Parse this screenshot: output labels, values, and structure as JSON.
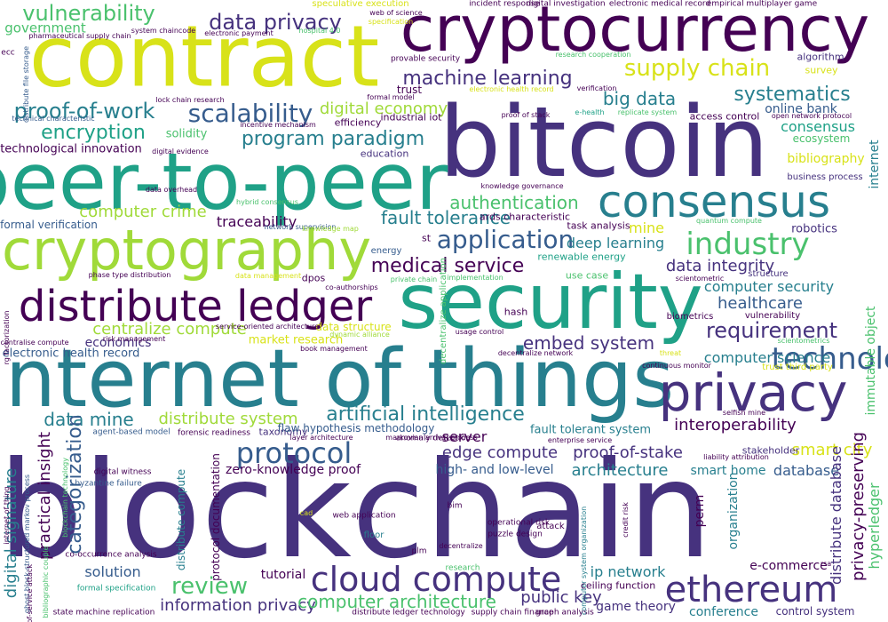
{
  "word_cloud": {
    "palette": [
      "#440154",
      "#46327e",
      "#365c8d",
      "#277f8e",
      "#1fa187",
      "#4ac16d",
      "#a0da39",
      "#fde725"
    ],
    "words": [
      {
        "text": "blockchain",
        "color": "#46327e"
      },
      {
        "text": "internet of things",
        "color": "#277f8e"
      },
      {
        "text": "bitcoin",
        "color": "#46327e"
      },
      {
        "text": "contract",
        "color": "#d8e219"
      },
      {
        "text": "peer-to-peer",
        "color": "#1fa187"
      },
      {
        "text": "security",
        "color": "#1fa187"
      },
      {
        "text": "cryptocurrency",
        "color": "#440154"
      },
      {
        "text": "cryptography",
        "color": "#a0da39"
      },
      {
        "text": "distribute ledger",
        "color": "#440154"
      },
      {
        "text": "privacy",
        "color": "#46327e"
      },
      {
        "text": "consensus",
        "color": "#277f8e"
      },
      {
        "text": "ethereum",
        "color": "#46327e"
      },
      {
        "text": "cloud compute",
        "color": "#46327e"
      },
      {
        "text": "technology",
        "color": "#365c8d"
      },
      {
        "text": "protocol",
        "color": "#365c8d"
      },
      {
        "text": "industry",
        "color": "#4ac16d"
      },
      {
        "text": "application",
        "color": "#365c8d"
      },
      {
        "text": "vulnerability",
        "color": "#4ac16d"
      },
      {
        "text": "supply chain",
        "color": "#d8e219"
      },
      {
        "text": "scalability",
        "color": "#365c8d"
      },
      {
        "text": "data privacy",
        "color": "#46327e"
      },
      {
        "text": "machine learning",
        "color": "#46327e"
      },
      {
        "text": "proof-of-work",
        "color": "#277f8e"
      },
      {
        "text": "encryption",
        "color": "#1fa187"
      },
      {
        "text": "program paradigm",
        "color": "#277f8e"
      },
      {
        "text": "systematics",
        "color": "#277f8e"
      },
      {
        "text": "big data",
        "color": "#277f8e"
      },
      {
        "text": "digital economy",
        "color": "#a0da39"
      },
      {
        "text": "authentication",
        "color": "#4ac16d"
      },
      {
        "text": "fault tolerance",
        "color": "#277f8e"
      },
      {
        "text": "computer crime",
        "color": "#a0da39"
      },
      {
        "text": "traceability",
        "color": "#440154"
      },
      {
        "text": "medical service",
        "color": "#440154"
      },
      {
        "text": "deep learning",
        "color": "#277f8e"
      },
      {
        "text": "data integrity",
        "color": "#46327e"
      },
      {
        "text": "requirement",
        "color": "#46327e"
      },
      {
        "text": "healthcare",
        "color": "#365c8d"
      },
      {
        "text": "computer security",
        "color": "#277f8e"
      },
      {
        "text": "centralize compute",
        "color": "#a0da39"
      },
      {
        "text": "artificial intelligence",
        "color": "#277f8e"
      },
      {
        "text": "embed system",
        "color": "#46327e"
      },
      {
        "text": "data mine",
        "color": "#277f8e"
      },
      {
        "text": "distribute system",
        "color": "#a0da39"
      },
      {
        "text": "interoperability",
        "color": "#440154"
      },
      {
        "text": "computer science",
        "color": "#277f8e"
      },
      {
        "text": "edge compute",
        "color": "#46327e"
      },
      {
        "text": "proof-of-stake",
        "color": "#46327e"
      },
      {
        "text": "zero-knowledge proof",
        "color": "#440154"
      },
      {
        "text": "architecture",
        "color": "#277f8e"
      },
      {
        "text": "smart city",
        "color": "#d8e219"
      },
      {
        "text": "database",
        "color": "#365c8d"
      },
      {
        "text": "smart home",
        "color": "#277f8e"
      },
      {
        "text": "server",
        "color": "#440154"
      },
      {
        "text": "high- and low-level",
        "color": "#365c8d"
      },
      {
        "text": "review",
        "color": "#4ac16d"
      },
      {
        "text": "information privacy",
        "color": "#46327e"
      },
      {
        "text": "computer architecture",
        "color": "#4ac16d"
      },
      {
        "text": "public key",
        "color": "#46327e"
      },
      {
        "text": "solution",
        "color": "#365c8d"
      },
      {
        "text": "tutorial",
        "color": "#440154"
      },
      {
        "text": "ip network",
        "color": "#277f8e"
      },
      {
        "text": "e-commerce",
        "color": "#440154"
      },
      {
        "text": "game theory",
        "color": "#46327e"
      },
      {
        "text": "conference",
        "color": "#277f8e"
      },
      {
        "text": "control system",
        "color": "#46327e"
      },
      {
        "text": "consensus",
        "color": "#1fa187"
      },
      {
        "text": "online bank",
        "color": "#365c8d"
      },
      {
        "text": "bibliography",
        "color": "#d8e219"
      },
      {
        "text": "robotics",
        "color": "#46327e"
      },
      {
        "text": "mine",
        "color": "#d8e219"
      },
      {
        "text": "government",
        "color": "#4ac16d"
      },
      {
        "text": "solidity",
        "color": "#4ac16d"
      },
      {
        "text": "technological innovation",
        "color": "#440154"
      },
      {
        "text": "formal verification",
        "color": "#365c8d"
      },
      {
        "text": "economics",
        "color": "#46327e"
      },
      {
        "text": "electronic health record",
        "color": "#365c8d"
      },
      {
        "text": "market research",
        "color": "#d8e219"
      },
      {
        "text": "data structure",
        "color": "#d8e219"
      },
      {
        "text": "trust",
        "color": "#440154"
      },
      {
        "text": "efficiency",
        "color": "#440154"
      },
      {
        "text": "industrial iot",
        "color": "#440154"
      },
      {
        "text": "education",
        "color": "#46327e"
      },
      {
        "text": "access control",
        "color": "#440154"
      },
      {
        "text": "ecosystem",
        "color": "#4ac16d"
      },
      {
        "text": "business process",
        "color": "#46327e"
      },
      {
        "text": "algorithm",
        "color": "#46327e"
      },
      {
        "text": "survey",
        "color": "#d8e219"
      },
      {
        "text": "task analysis",
        "color": "#440154"
      },
      {
        "text": "renewable energy",
        "color": "#1fa187"
      },
      {
        "text": "energy",
        "color": "#365c8d"
      },
      {
        "text": "dpos",
        "color": "#440154"
      },
      {
        "text": "st",
        "color": "#440154"
      },
      {
        "text": "ards characteristic",
        "color": "#440154"
      },
      {
        "text": "hash",
        "color": "#440154"
      },
      {
        "text": "use case",
        "color": "#4ac16d"
      },
      {
        "text": "structure",
        "color": "#46327e"
      },
      {
        "text": "biometrics",
        "color": "#440154"
      },
      {
        "text": "vulnerability",
        "color": "#440154"
      },
      {
        "text": "trust third party",
        "color": "#d8e219"
      },
      {
        "text": "stakeholder",
        "color": "#46327e"
      },
      {
        "text": "fault tolerant system",
        "color": "#277f8e"
      },
      {
        "text": "taxonomy",
        "color": "#46327e"
      },
      {
        "text": "flaw hypothesis methodology",
        "color": "#365c8d"
      },
      {
        "text": "anomaly detection",
        "color": "#440154"
      },
      {
        "text": "forensic readiness",
        "color": "#440154"
      },
      {
        "text": "agent-based model",
        "color": "#365c8d"
      },
      {
        "text": "digital witness",
        "color": "#440154"
      },
      {
        "text": "byzantine failure",
        "color": "#365c8d"
      },
      {
        "text": "co-occurrence analysis",
        "color": "#440154"
      },
      {
        "text": "formal specification",
        "color": "#1fa187"
      },
      {
        "text": "state machine replication",
        "color": "#440154"
      },
      {
        "text": "distribute ledger technology",
        "color": "#440154"
      },
      {
        "text": "supply chain finance",
        "color": "#440154"
      },
      {
        "text": "graph analysis",
        "color": "#440154"
      },
      {
        "text": "ceiling function",
        "color": "#440154"
      },
      {
        "text": "puzzle design",
        "color": "#440154"
      },
      {
        "text": "operational risk",
        "color": "#440154"
      },
      {
        "text": "web application",
        "color": "#440154"
      },
      {
        "text": "bim",
        "color": "#440154"
      },
      {
        "text": "floor",
        "color": "#277f8e"
      },
      {
        "text": "plm",
        "color": "#440154"
      },
      {
        "text": "attack",
        "color": "#440154"
      },
      {
        "text": "research",
        "color": "#4ac16d"
      },
      {
        "text": "speculative execution",
        "color": "#d8e219"
      },
      {
        "text": "web of science",
        "color": "#440154"
      },
      {
        "text": "specification",
        "color": "#d8e219"
      },
      {
        "text": "incident response",
        "color": "#440154"
      },
      {
        "text": "digital investigation",
        "color": "#440154"
      },
      {
        "text": "electronic medical record",
        "color": "#440154"
      },
      {
        "text": "empirical multiplayer game",
        "color": "#440154"
      },
      {
        "text": "provable security",
        "color": "#440154"
      },
      {
        "text": "research cooperation",
        "color": "#4ac16d"
      },
      {
        "text": "system chaincode",
        "color": "#440154"
      },
      {
        "text": "electronic payment",
        "color": "#440154"
      },
      {
        "text": "hospital 4.0",
        "color": "#4ac16d"
      },
      {
        "text": "pharmaceutical supply chain",
        "color": "#440154"
      },
      {
        "text": "formal model",
        "color": "#440154"
      },
      {
        "text": "electronic health record",
        "color": "#d8e219"
      },
      {
        "text": "verification",
        "color": "#440154"
      },
      {
        "text": "lock chain research",
        "color": "#440154"
      },
      {
        "text": "technical characteristic",
        "color": "#365c8d"
      },
      {
        "text": "incentive mechanism",
        "color": "#440154"
      },
      {
        "text": "proof of stack",
        "color": "#440154"
      },
      {
        "text": "e-health",
        "color": "#1fa187"
      },
      {
        "text": "replicate system",
        "color": "#4ac16d"
      },
      {
        "text": "open network protocol",
        "color": "#440154"
      },
      {
        "text": "knowledge governance",
        "color": "#440154"
      },
      {
        "text": "digital evidence",
        "color": "#440154"
      },
      {
        "text": "data overhead",
        "color": "#440154"
      },
      {
        "text": "hybrid consensus",
        "color": "#4ac16d"
      },
      {
        "text": "network supervision",
        "color": "#365c8d"
      },
      {
        "text": "knowledge map",
        "color": "#a0da39"
      },
      {
        "text": "quantum compute",
        "color": "#4ac16d"
      },
      {
        "text": "phase type distribution",
        "color": "#440154"
      },
      {
        "text": "data management",
        "color": "#d8e219"
      },
      {
        "text": "private chain",
        "color": "#4ac16d"
      },
      {
        "text": "implementation",
        "color": "#4ac16d"
      },
      {
        "text": "scientometric",
        "color": "#440154"
      },
      {
        "text": "co-authorships",
        "color": "#440154"
      },
      {
        "text": "service-oriented architecture",
        "color": "#440154"
      },
      {
        "text": "dynamic alliance",
        "color": "#a0da39"
      },
      {
        "text": "usage control",
        "color": "#440154"
      },
      {
        "text": "risk management",
        "color": "#440154"
      },
      {
        "text": "book management",
        "color": "#440154"
      },
      {
        "text": "decentralize network",
        "color": "#440154"
      },
      {
        "text": "decentralise compute",
        "color": "#440154"
      },
      {
        "text": "threat",
        "color": "#d8e219"
      },
      {
        "text": "scientometrics",
        "color": "#4ac16d"
      },
      {
        "text": "continuous monitor",
        "color": "#440154"
      },
      {
        "text": "selfish mine",
        "color": "#440154"
      },
      {
        "text": "liability attribution",
        "color": "#440154"
      },
      {
        "text": "layer architecture",
        "color": "#440154"
      },
      {
        "text": "enterprise service",
        "color": "#440154"
      },
      {
        "text": "markovian arrival process",
        "color": "#440154"
      },
      {
        "text": "cad",
        "color": "#d8e219"
      },
      {
        "text": "decentralize",
        "color": "#440154"
      },
      {
        "text": "rsa",
        "color": "#440154"
      },
      {
        "text": "ecc",
        "color": "#440154"
      },
      {
        "text": "distribute file storage",
        "color": "#365c8d",
        "orient": "v"
      },
      {
        "text": "rg factorization",
        "color": "#440154",
        "orient": "v"
      },
      {
        "text": "practical insight",
        "color": "#440154",
        "orient": "v"
      },
      {
        "text": "categorization",
        "color": "#365c8d",
        "orient": "v"
      },
      {
        "text": "digital signature",
        "color": "#277f8e",
        "orient": "v"
      },
      {
        "text": "distribute compute",
        "color": "#277f8e",
        "orient": "v"
      },
      {
        "text": "protocol documentation",
        "color": "#440154",
        "orient": "v"
      },
      {
        "text": "internet of thing",
        "color": "#440154",
        "orient": "v"
      },
      {
        "text": "ghost block-structured markov process",
        "color": "#365c8d",
        "orient": "v"
      },
      {
        "text": "denial-of-service attack",
        "color": "#440154",
        "orient": "v"
      },
      {
        "text": "blockchain technology",
        "color": "#4ac16d",
        "orient": "v"
      },
      {
        "text": "bibliographic couple",
        "color": "#4ac16d",
        "orient": "v"
      },
      {
        "text": "perm",
        "color": "#440154",
        "orient": "v"
      },
      {
        "text": "organization",
        "color": "#277f8e",
        "orient": "v"
      },
      {
        "text": "privacy-preserving",
        "color": "#440154",
        "orient": "v"
      },
      {
        "text": "distribute database",
        "color": "#46327e",
        "orient": "v"
      },
      {
        "text": "hyperledger",
        "color": "#4ac16d",
        "orient": "v"
      },
      {
        "text": "immutable object",
        "color": "#4ac16d",
        "orient": "v"
      },
      {
        "text": "internet",
        "color": "#277f8e",
        "orient": "v"
      },
      {
        "text": "computer system organization",
        "color": "#277f8e",
        "orient": "v"
      },
      {
        "text": "credit risk",
        "color": "#440154",
        "orient": "v"
      },
      {
        "text": "decentralize application",
        "color": "#4ac16d",
        "orient": "v"
      }
    ]
  }
}
